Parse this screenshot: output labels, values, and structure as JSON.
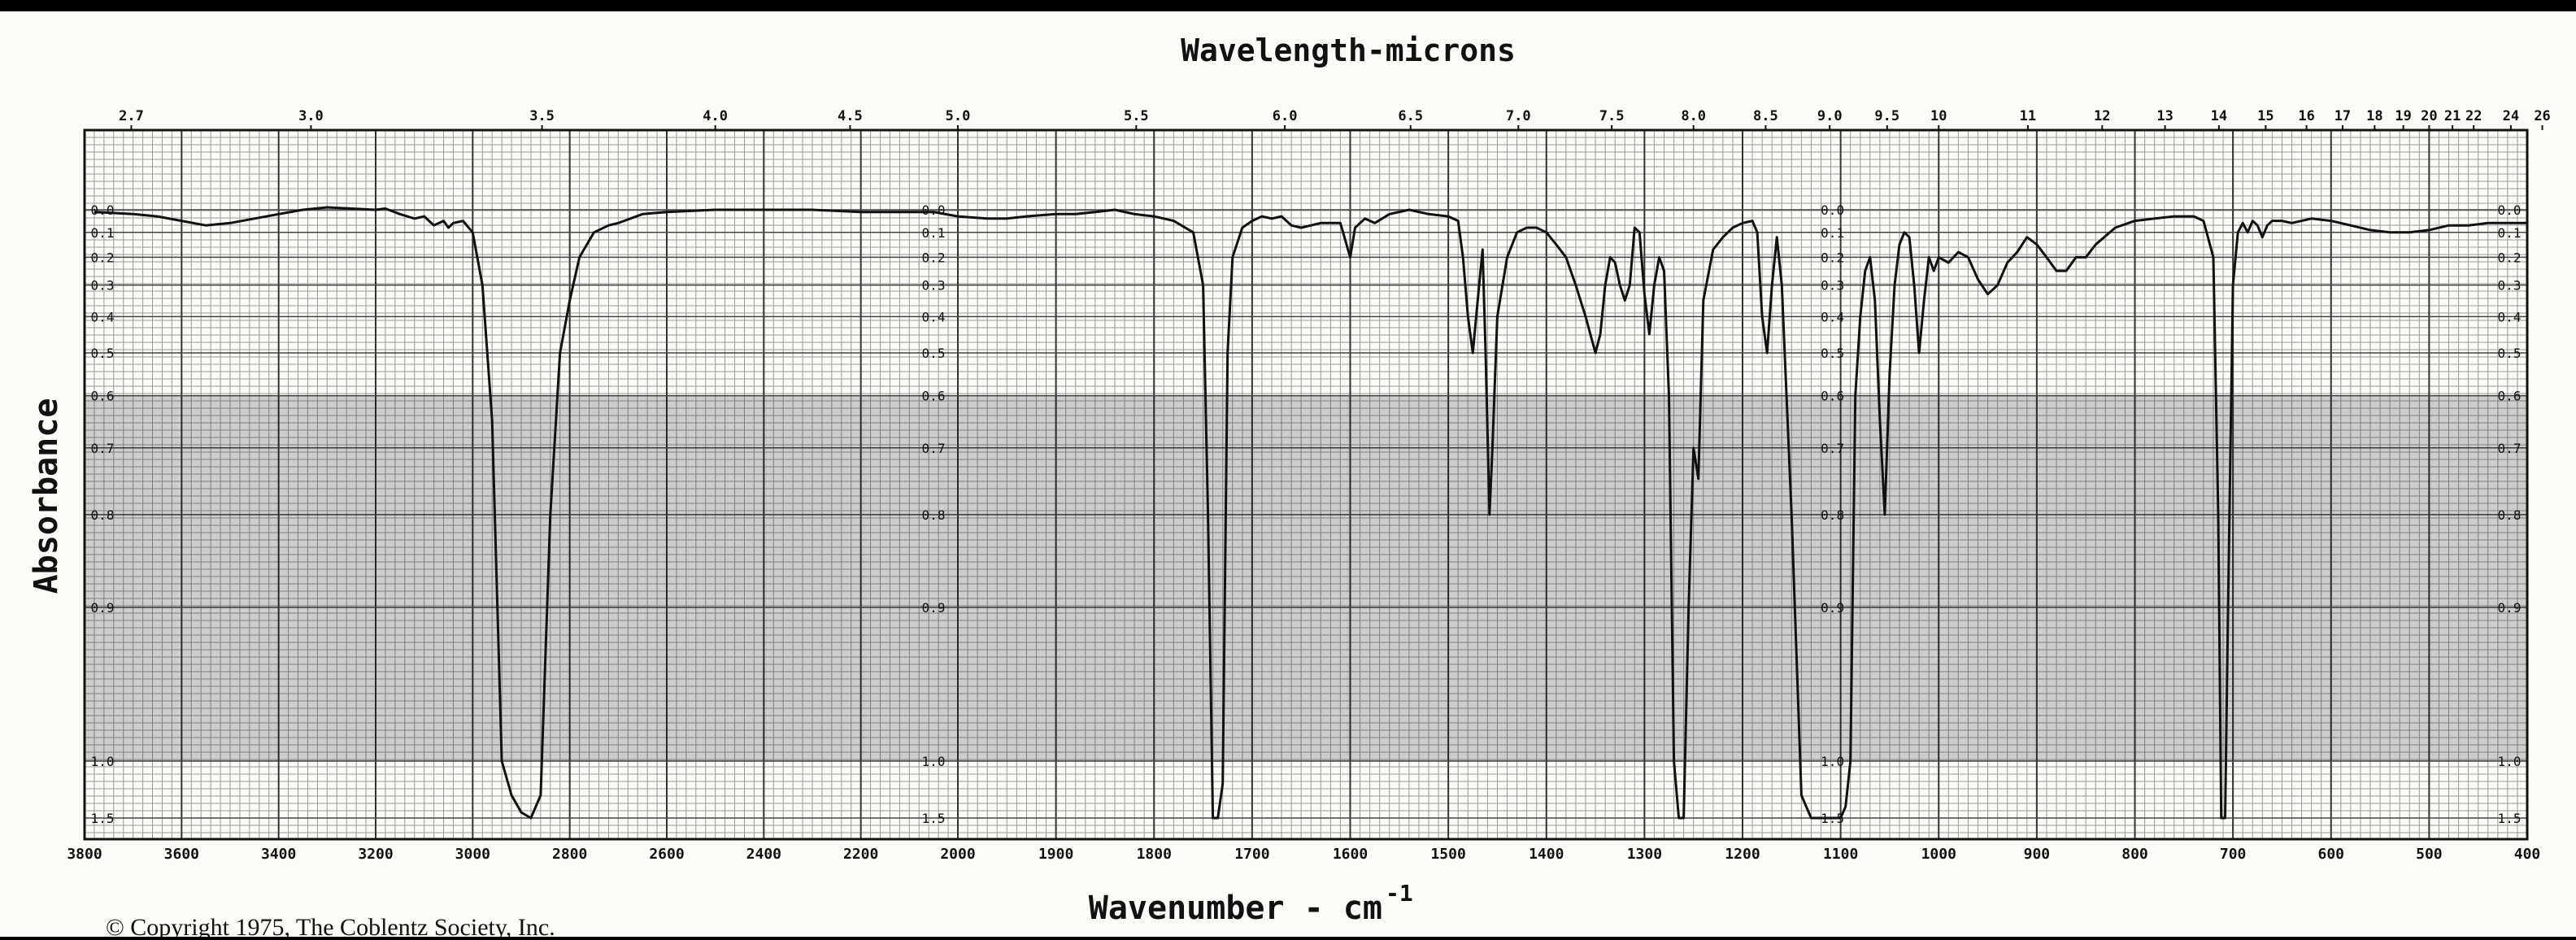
{
  "chart_data": {
    "type": "line",
    "title": "Wavelength-microns",
    "xlabel_base": "Wavenumber - cm",
    "xlabel_sup": "-1",
    "ylabel": "Absorbance",
    "copyright": "© Copyright 1975, The Coblentz Society, Inc.",
    "x_reversed": true,
    "x_scale_change_at": 2000,
    "xlim": [
      3800,
      400
    ],
    "ylim_absorbance": [
      0.0,
      1.5
    ],
    "grid": true,
    "wavenumber_ticks": [
      3800,
      3600,
      3400,
      3200,
      3000,
      2800,
      2600,
      2400,
      2200,
      2000,
      1900,
      1800,
      1700,
      1600,
      1500,
      1400,
      1300,
      1200,
      1100,
      1000,
      900,
      800,
      700,
      600,
      500,
      400
    ],
    "wavenumber_tick_labels": [
      "3800",
      "3600",
      "3400",
      "3200",
      "3000",
      "2800",
      "2600",
      "2400",
      "2200",
      "2000",
      "1900",
      "1800",
      "1700",
      "1600",
      "1500",
      "1400",
      "1300",
      "1200",
      "1100",
      "1000",
      "900",
      "800",
      "700",
      "600",
      "500",
      "400"
    ],
    "micron_ticks": [
      "2.7",
      "3.0",
      "3.5",
      "4.0",
      "4.5",
      "5.0",
      "5.5",
      "6.0",
      "6.5",
      "7.0",
      "7.5",
      "8.0",
      "8.5",
      "9.0",
      "9.5",
      "10",
      "11",
      "12",
      "13",
      "14",
      "15",
      "16",
      "17",
      "18",
      "19",
      "20",
      "21",
      "22",
      "24",
      "26"
    ],
    "absorbance_ticks": [
      0.0,
      0.1,
      0.2,
      0.3,
      0.4,
      0.5,
      0.6,
      0.7,
      0.8,
      0.9,
      1.0,
      1.5
    ],
    "absorbance_tick_labels": [
      "0.0",
      "0.1",
      "0.2",
      "0.3",
      "0.4",
      "0.5",
      "0.6",
      "0.7",
      "0.8",
      "0.9",
      "1.0",
      "1.5"
    ],
    "series": [
      {
        "points": [
          [
            3780,
            0.01
          ],
          [
            3700,
            0.02
          ],
          [
            3650,
            0.03
          ],
          [
            3600,
            0.05
          ],
          [
            3550,
            0.07
          ],
          [
            3500,
            0.06
          ],
          [
            3450,
            0.04
          ],
          [
            3400,
            0.02
          ],
          [
            3350,
            0.0
          ],
          [
            3300,
            -0.01
          ],
          [
            3200,
            0.0
          ],
          [
            3180,
            -0.005
          ],
          [
            3150,
            0.02
          ],
          [
            3120,
            0.04
          ],
          [
            3100,
            0.03
          ],
          [
            3080,
            0.07
          ],
          [
            3060,
            0.05
          ],
          [
            3050,
            0.08
          ],
          [
            3040,
            0.06
          ],
          [
            3020,
            0.05
          ],
          [
            3000,
            0.1
          ],
          [
            2980,
            0.3
          ],
          [
            2960,
            0.65
          ],
          [
            2940,
            1.0
          ],
          [
            2920,
            1.3
          ],
          [
            2900,
            1.45
          ],
          [
            2880,
            1.5
          ],
          [
            2860,
            1.3
          ],
          [
            2840,
            0.8
          ],
          [
            2820,
            0.5
          ],
          [
            2800,
            0.35
          ],
          [
            2780,
            0.2
          ],
          [
            2750,
            0.1
          ],
          [
            2720,
            0.07
          ],
          [
            2700,
            0.06
          ],
          [
            2650,
            0.02
          ],
          [
            2600,
            0.01
          ],
          [
            2500,
            0.0
          ],
          [
            2400,
            0.0
          ],
          [
            2300,
            0.0
          ],
          [
            2200,
            0.01
          ],
          [
            2100,
            0.01
          ],
          [
            2050,
            0.01
          ],
          [
            2000,
            0.03
          ],
          [
            1970,
            0.04
          ],
          [
            1950,
            0.04
          ],
          [
            1930,
            0.03
          ],
          [
            1900,
            0.02
          ],
          [
            1880,
            0.02
          ],
          [
            1860,
            0.01
          ],
          [
            1840,
            0.0
          ],
          [
            1820,
            0.02
          ],
          [
            1800,
            0.03
          ],
          [
            1780,
            0.05
          ],
          [
            1760,
            0.1
          ],
          [
            1750,
            0.3
          ],
          [
            1745,
            0.8
          ],
          [
            1740,
            1.5
          ],
          [
            1735,
            1.5
          ],
          [
            1730,
            1.2
          ],
          [
            1725,
            0.5
          ],
          [
            1720,
            0.2
          ],
          [
            1710,
            0.08
          ],
          [
            1700,
            0.05
          ],
          [
            1690,
            0.03
          ],
          [
            1680,
            0.04
          ],
          [
            1670,
            0.03
          ],
          [
            1660,
            0.07
          ],
          [
            1650,
            0.08
          ],
          [
            1630,
            0.06
          ],
          [
            1610,
            0.06
          ],
          [
            1600,
            0.2
          ],
          [
            1595,
            0.08
          ],
          [
            1585,
            0.04
          ],
          [
            1575,
            0.06
          ],
          [
            1560,
            0.02
          ],
          [
            1540,
            0.0
          ],
          [
            1520,
            0.02
          ],
          [
            1500,
            0.03
          ],
          [
            1490,
            0.05
          ],
          [
            1485,
            0.2
          ],
          [
            1480,
            0.4
          ],
          [
            1475,
            0.5
          ],
          [
            1470,
            0.35
          ],
          [
            1465,
            0.17
          ],
          [
            1462,
            0.5
          ],
          [
            1458,
            0.8
          ],
          [
            1455,
            0.7
          ],
          [
            1450,
            0.4
          ],
          [
            1440,
            0.2
          ],
          [
            1430,
            0.1
          ],
          [
            1420,
            0.08
          ],
          [
            1410,
            0.08
          ],
          [
            1400,
            0.1
          ],
          [
            1390,
            0.15
          ],
          [
            1380,
            0.2
          ],
          [
            1370,
            0.3
          ],
          [
            1360,
            0.4
          ],
          [
            1350,
            0.5
          ],
          [
            1345,
            0.45
          ],
          [
            1340,
            0.3
          ],
          [
            1335,
            0.2
          ],
          [
            1330,
            0.22
          ],
          [
            1325,
            0.3
          ],
          [
            1320,
            0.35
          ],
          [
            1315,
            0.3
          ],
          [
            1310,
            0.08
          ],
          [
            1305,
            0.1
          ],
          [
            1300,
            0.33
          ],
          [
            1295,
            0.45
          ],
          [
            1290,
            0.3
          ],
          [
            1285,
            0.2
          ],
          [
            1280,
            0.25
          ],
          [
            1275,
            0.6
          ],
          [
            1270,
            1.0
          ],
          [
            1265,
            1.5
          ],
          [
            1260,
            1.5
          ],
          [
            1255,
            0.9
          ],
          [
            1250,
            0.7
          ],
          [
            1245,
            0.75
          ],
          [
            1240,
            0.35
          ],
          [
            1230,
            0.17
          ],
          [
            1220,
            0.12
          ],
          [
            1210,
            0.08
          ],
          [
            1200,
            0.06
          ],
          [
            1190,
            0.05
          ],
          [
            1185,
            0.1
          ],
          [
            1180,
            0.4
          ],
          [
            1175,
            0.5
          ],
          [
            1170,
            0.3
          ],
          [
            1165,
            0.12
          ],
          [
            1160,
            0.3
          ],
          [
            1150,
            0.8
          ],
          [
            1140,
            1.3
          ],
          [
            1130,
            1.5
          ],
          [
            1120,
            1.5
          ],
          [
            1110,
            1.5
          ],
          [
            1100,
            1.5
          ],
          [
            1095,
            1.4
          ],
          [
            1090,
            1.0
          ],
          [
            1085,
            0.6
          ],
          [
            1080,
            0.4
          ],
          [
            1075,
            0.25
          ],
          [
            1070,
            0.2
          ],
          [
            1065,
            0.35
          ],
          [
            1060,
            0.65
          ],
          [
            1055,
            0.8
          ],
          [
            1050,
            0.55
          ],
          [
            1045,
            0.3
          ],
          [
            1040,
            0.15
          ],
          [
            1035,
            0.1
          ],
          [
            1030,
            0.12
          ],
          [
            1025,
            0.3
          ],
          [
            1020,
            0.5
          ],
          [
            1015,
            0.35
          ],
          [
            1010,
            0.2
          ],
          [
            1005,
            0.25
          ],
          [
            1000,
            0.2
          ],
          [
            990,
            0.22
          ],
          [
            980,
            0.18
          ],
          [
            970,
            0.2
          ],
          [
            960,
            0.28
          ],
          [
            950,
            0.33
          ],
          [
            940,
            0.3
          ],
          [
            930,
            0.22
          ],
          [
            920,
            0.18
          ],
          [
            910,
            0.12
          ],
          [
            900,
            0.15
          ],
          [
            890,
            0.2
          ],
          [
            880,
            0.25
          ],
          [
            870,
            0.25
          ],
          [
            860,
            0.2
          ],
          [
            850,
            0.2
          ],
          [
            840,
            0.15
          ],
          [
            820,
            0.08
          ],
          [
            800,
            0.05
          ],
          [
            780,
            0.04
          ],
          [
            760,
            0.03
          ],
          [
            740,
            0.03
          ],
          [
            730,
            0.05
          ],
          [
            720,
            0.2
          ],
          [
            715,
            0.8
          ],
          [
            712,
            1.5
          ],
          [
            708,
            1.5
          ],
          [
            705,
            0.9
          ],
          [
            700,
            0.3
          ],
          [
            695,
            0.1
          ],
          [
            690,
            0.06
          ],
          [
            685,
            0.1
          ],
          [
            680,
            0.05
          ],
          [
            675,
            0.07
          ],
          [
            670,
            0.12
          ],
          [
            665,
            0.07
          ],
          [
            660,
            0.05
          ],
          [
            650,
            0.05
          ],
          [
            640,
            0.06
          ],
          [
            620,
            0.04
          ],
          [
            600,
            0.05
          ],
          [
            580,
            0.07
          ],
          [
            560,
            0.09
          ],
          [
            540,
            0.1
          ],
          [
            520,
            0.1
          ],
          [
            500,
            0.09
          ],
          [
            480,
            0.07
          ],
          [
            460,
            0.07
          ],
          [
            440,
            0.06
          ],
          [
            420,
            0.06
          ],
          [
            400,
            0.06
          ]
        ]
      }
    ]
  }
}
